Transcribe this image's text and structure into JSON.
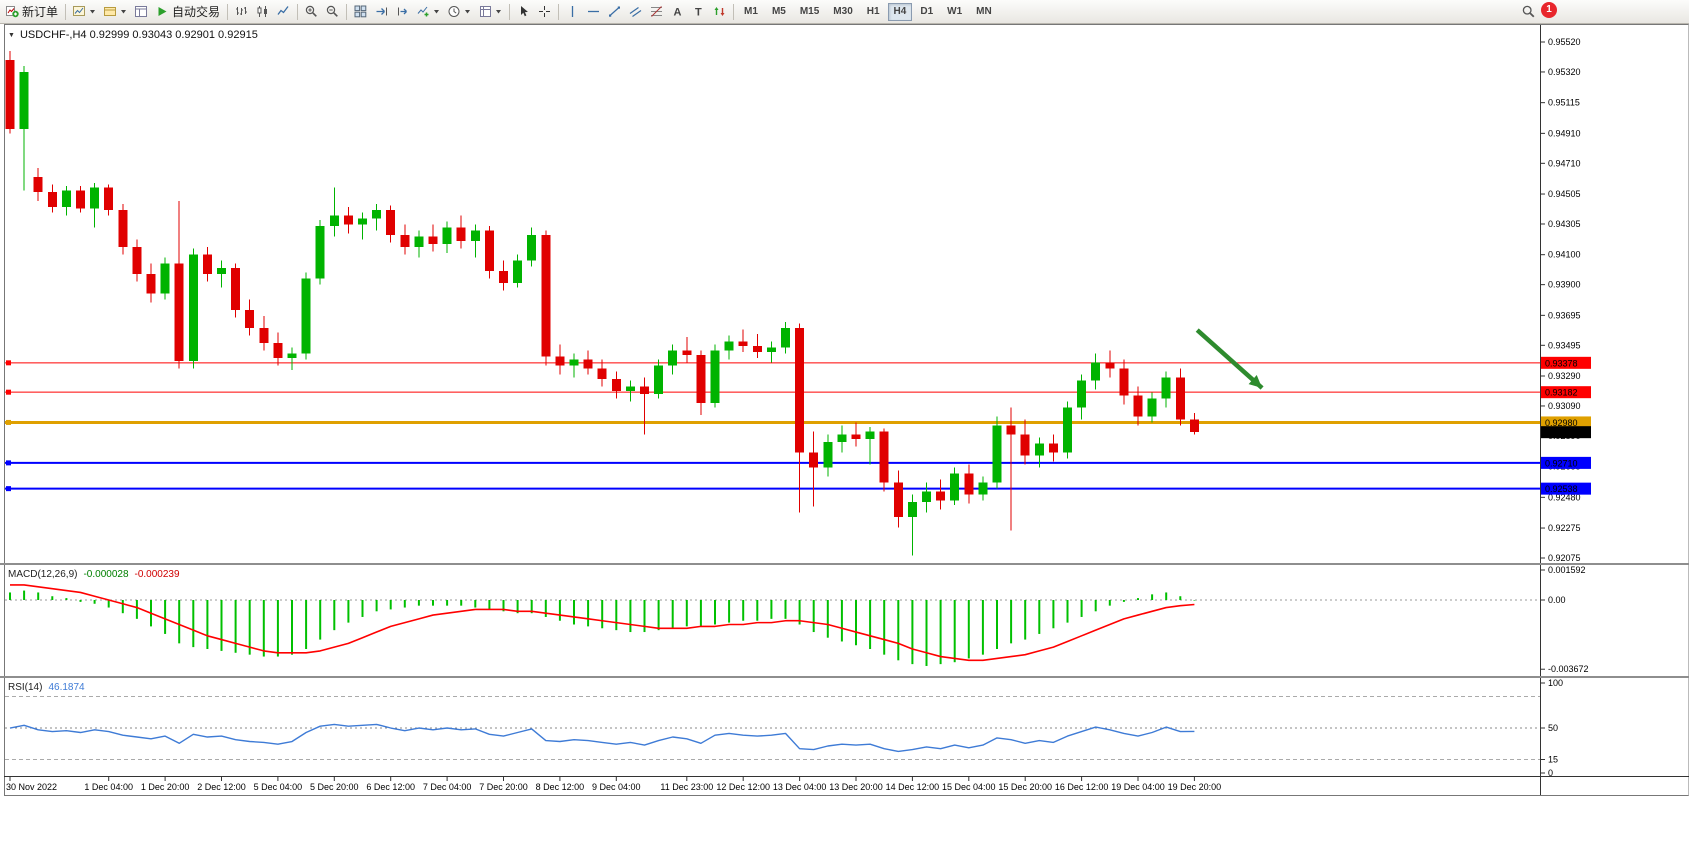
{
  "toolbar": {
    "new_order_label": "新订单",
    "auto_trade_label": "自动交易",
    "timeframes": [
      "M1",
      "M5",
      "M15",
      "M30",
      "H1",
      "H4",
      "D1",
      "W1",
      "MN"
    ],
    "active_timeframe": "H4",
    "notification_badge": "1",
    "items": [
      {
        "type": "button",
        "name": "new-order-button",
        "icon": "new-order",
        "label": "新订单"
      },
      {
        "type": "sep"
      },
      {
        "type": "button",
        "name": "new-chart-button",
        "icon": "new-chart",
        "dropdown": true
      },
      {
        "type": "button",
        "name": "profiles-button",
        "icon": "profiles",
        "dropdown": true
      },
      {
        "type": "button",
        "name": "data-window-button",
        "icon": "data-window"
      },
      {
        "type": "button",
        "name": "auto-trading-button",
        "icon": "play",
        "label": "自动交易"
      },
      {
        "type": "sep"
      },
      {
        "type": "button",
        "name": "bar-chart-type-button",
        "icon": "bars"
      },
      {
        "type": "button",
        "name": "candlestick-chart-type-button",
        "icon": "candles"
      },
      {
        "type": "button",
        "name": "line-chart-type-button",
        "icon": "linechart"
      },
      {
        "type": "sep"
      },
      {
        "type": "button",
        "name": "zoom-in-button",
        "icon": "zoomin"
      },
      {
        "type": "button",
        "name": "zoom-out-button",
        "icon": "zoomout"
      },
      {
        "type": "sep"
      },
      {
        "type": "button",
        "name": "tile-windows-button",
        "icon": "tile"
      },
      {
        "type": "button",
        "name": "auto-scroll-button",
        "icon": "autoscroll"
      },
      {
        "type": "button",
        "name": "chart-shift-button",
        "icon": "chartshift"
      },
      {
        "type": "button",
        "name": "indicators-button",
        "icon": "indicators",
        "dropdown": true
      },
      {
        "type": "button",
        "name": "periods-button",
        "icon": "clock",
        "dropdown": true
      },
      {
        "type": "button",
        "name": "templates-button",
        "icon": "templates",
        "dropdown": true
      },
      {
        "type": "sep"
      },
      {
        "type": "button",
        "name": "cursor-tool-button",
        "icon": "cursor"
      },
      {
        "type": "button",
        "name": "crosshair-tool-button",
        "icon": "crosshair"
      },
      {
        "type": "sep"
      },
      {
        "type": "button",
        "name": "vertical-line-tool-button",
        "icon": "vline"
      },
      {
        "type": "button",
        "name": "horizontal-line-tool-button",
        "icon": "hline"
      },
      {
        "type": "button",
        "name": "trendline-tool-button",
        "icon": "trendline"
      },
      {
        "type": "button",
        "name": "channel-tool-button",
        "icon": "channel"
      },
      {
        "type": "button",
        "name": "fibonacci-tool-button",
        "icon": "fibo"
      },
      {
        "type": "button",
        "name": "text-tool-button",
        "icon": "textA"
      },
      {
        "type": "button",
        "name": "label-tool-button",
        "icon": "labelT"
      },
      {
        "type": "button",
        "name": "arrows-tool-button",
        "icon": "arrows"
      },
      {
        "type": "sep"
      },
      {
        "type": "tf"
      },
      {
        "type": "button",
        "name": "search-button",
        "icon": "magnifier",
        "spacer": true
      }
    ]
  },
  "chart": {
    "symbol_info": "USDCHF-,H4 0.92999 0.93043 0.92901 0.92915",
    "macd_label": "MACD(12,26,9)",
    "macd_value_1": "-0.000028",
    "macd_value_2": "-0.000239",
    "rsi_label": "RSI(14)",
    "rsi_value": "46.1874"
  },
  "chart_data": {
    "type": "candlestick",
    "symbol": "USDCHF-",
    "period": "H4",
    "price_range": [
      0.92075,
      0.9552
    ],
    "price_axis_labels": [
      "0.95520",
      "0.95320",
      "0.95115",
      "0.94910",
      "0.94710",
      "0.94505",
      "0.94305",
      "0.94100",
      "0.93900",
      "0.93695",
      "0.93495",
      "0.93290",
      "0.93090",
      "0.92890",
      "0.92685",
      "0.92480",
      "0.92275",
      "0.92075"
    ],
    "current_price": "0.92915",
    "colors": {
      "bull": "#00B300",
      "bear": "#E00000",
      "background": "#FFFFFF",
      "axis_text": "#000000"
    },
    "hlines": [
      {
        "price": 0.93378,
        "label": "0.93378",
        "color": "#FF0000",
        "width": 1
      },
      {
        "price": 0.93182,
        "label": "0.93182",
        "color": "#FF0000",
        "width": 1
      },
      {
        "price": 0.9298,
        "label": "0.92980",
        "color": "#DFA000",
        "width": 3
      },
      {
        "price": 0.9271,
        "label": "0.92710",
        "color": "#0000FF",
        "width": 2
      },
      {
        "price": 0.92538,
        "label": "0.92538",
        "color": "#0000FF",
        "width": 2
      }
    ],
    "annotation_arrow": {
      "i1": 84.2,
      "p1": 0.93597,
      "i2": 88.8,
      "p2": 0.9321,
      "color": "#2E8B2E"
    },
    "ohlc": [
      [
        0.954,
        0.9546,
        0.9491,
        0.9494
      ],
      [
        0.9494,
        0.9536,
        0.9453,
        0.9532
      ],
      [
        0.9462,
        0.9468,
        0.9446,
        0.9452
      ],
      [
        0.9452,
        0.9457,
        0.9438,
        0.9442
      ],
      [
        0.9442,
        0.9456,
        0.9436,
        0.9453
      ],
      [
        0.9453,
        0.9456,
        0.9438,
        0.9441
      ],
      [
        0.9441,
        0.9458,
        0.9428,
        0.9455
      ],
      [
        0.9455,
        0.9457,
        0.9436,
        0.944
      ],
      [
        0.944,
        0.9444,
        0.941,
        0.9415
      ],
      [
        0.9415,
        0.942,
        0.9392,
        0.9397
      ],
      [
        0.9397,
        0.9404,
        0.9378,
        0.9384
      ],
      [
        0.9384,
        0.9408,
        0.938,
        0.9404
      ],
      [
        0.9404,
        0.9446,
        0.9334,
        0.9339
      ],
      [
        0.9339,
        0.9414,
        0.9334,
        0.941
      ],
      [
        0.941,
        0.9415,
        0.9392,
        0.9397
      ],
      [
        0.9397,
        0.9406,
        0.9388,
        0.9401
      ],
      [
        0.9401,
        0.9404,
        0.9368,
        0.9373
      ],
      [
        0.9373,
        0.938,
        0.9356,
        0.9361
      ],
      [
        0.9361,
        0.9369,
        0.9346,
        0.9351
      ],
      [
        0.9351,
        0.9358,
        0.9336,
        0.9341
      ],
      [
        0.9341,
        0.9348,
        0.9333,
        0.9344
      ],
      [
        0.9344,
        0.9398,
        0.934,
        0.9394
      ],
      [
        0.9394,
        0.9433,
        0.939,
        0.9429
      ],
      [
        0.9429,
        0.9455,
        0.9422,
        0.9436
      ],
      [
        0.9436,
        0.9442,
        0.9424,
        0.943
      ],
      [
        0.943,
        0.9438,
        0.942,
        0.9434
      ],
      [
        0.9434,
        0.9444,
        0.9426,
        0.944
      ],
      [
        0.944,
        0.9443,
        0.9418,
        0.9423
      ],
      [
        0.9423,
        0.943,
        0.941,
        0.9415
      ],
      [
        0.9415,
        0.9426,
        0.9408,
        0.9422
      ],
      [
        0.9422,
        0.943,
        0.9412,
        0.9417
      ],
      [
        0.9417,
        0.9432,
        0.9411,
        0.9428
      ],
      [
        0.9428,
        0.9436,
        0.9414,
        0.9419
      ],
      [
        0.9419,
        0.943,
        0.9408,
        0.9426
      ],
      [
        0.9426,
        0.9429,
        0.9394,
        0.9399
      ],
      [
        0.9399,
        0.9406,
        0.9386,
        0.9391
      ],
      [
        0.9391,
        0.941,
        0.9388,
        0.9406
      ],
      [
        0.9406,
        0.9428,
        0.9402,
        0.9423
      ],
      [
        0.9423,
        0.9426,
        0.9336,
        0.9342
      ],
      [
        0.9342,
        0.935,
        0.933,
        0.9336
      ],
      [
        0.9336,
        0.9344,
        0.9328,
        0.934
      ],
      [
        0.934,
        0.9346,
        0.933,
        0.9334
      ],
      [
        0.9334,
        0.934,
        0.9322,
        0.9327
      ],
      [
        0.9327,
        0.9332,
        0.9314,
        0.9319
      ],
      [
        0.9319,
        0.9326,
        0.9312,
        0.9322
      ],
      [
        0.9322,
        0.9328,
        0.929,
        0.9317
      ],
      [
        0.9317,
        0.934,
        0.9314,
        0.9336
      ],
      [
        0.9336,
        0.935,
        0.933,
        0.9346
      ],
      [
        0.9346,
        0.9355,
        0.9338,
        0.9343
      ],
      [
        0.9343,
        0.9346,
        0.9303,
        0.9311
      ],
      [
        0.9311,
        0.935,
        0.9308,
        0.9346
      ],
      [
        0.9346,
        0.9356,
        0.934,
        0.9352
      ],
      [
        0.9352,
        0.936,
        0.9345,
        0.9349
      ],
      [
        0.9349,
        0.9357,
        0.9341,
        0.9345
      ],
      [
        0.9345,
        0.9352,
        0.9338,
        0.9348
      ],
      [
        0.9348,
        0.9365,
        0.9344,
        0.9361
      ],
      [
        0.9361,
        0.9364,
        0.9238,
        0.9278
      ],
      [
        0.9278,
        0.9292,
        0.9242,
        0.9268
      ],
      [
        0.9268,
        0.929,
        0.9262,
        0.9285
      ],
      [
        0.9285,
        0.9296,
        0.9278,
        0.929
      ],
      [
        0.929,
        0.9298,
        0.9282,
        0.9287
      ],
      [
        0.9287,
        0.9295,
        0.927,
        0.9292
      ],
      [
        0.9292,
        0.9294,
        0.9252,
        0.9258
      ],
      [
        0.9258,
        0.9266,
        0.9228,
        0.9235
      ],
      [
        0.9235,
        0.925,
        0.9209,
        0.9245
      ],
      [
        0.9245,
        0.9258,
        0.9238,
        0.9252
      ],
      [
        0.9252,
        0.926,
        0.924,
        0.9246
      ],
      [
        0.9246,
        0.9268,
        0.9243,
        0.9264
      ],
      [
        0.9264,
        0.927,
        0.9244,
        0.925
      ],
      [
        0.925,
        0.9262,
        0.9246,
        0.9258
      ],
      [
        0.9258,
        0.9302,
        0.9254,
        0.9296
      ],
      [
        0.9296,
        0.9308,
        0.9226,
        0.929
      ],
      [
        0.929,
        0.93,
        0.927,
        0.9276
      ],
      [
        0.9276,
        0.9288,
        0.9268,
        0.9284
      ],
      [
        0.9284,
        0.929,
        0.9272,
        0.9278
      ],
      [
        0.9278,
        0.9312,
        0.9274,
        0.9308
      ],
      [
        0.9308,
        0.933,
        0.93,
        0.9326
      ],
      [
        0.9326,
        0.9344,
        0.932,
        0.9338
      ],
      [
        0.9338,
        0.9346,
        0.9328,
        0.9334
      ],
      [
        0.9334,
        0.934,
        0.931,
        0.9316
      ],
      [
        0.9316,
        0.9322,
        0.9296,
        0.9302
      ],
      [
        0.9302,
        0.9318,
        0.9298,
        0.9314
      ],
      [
        0.9314,
        0.9332,
        0.9308,
        0.9328
      ],
      [
        0.9328,
        0.9334,
        0.9296,
        0.93
      ],
      [
        0.92999,
        0.93043,
        0.92901,
        0.92915
      ]
    ],
    "time_labels": [
      {
        "i": 0,
        "label": "30 Nov 2022"
      },
      {
        "i": 7,
        "label": "1 Dec 04:00"
      },
      {
        "i": 11,
        "label": "1 Dec 20:00"
      },
      {
        "i": 15,
        "label": "2 Dec 12:00"
      },
      {
        "i": 19,
        "label": "5 Dec 04:00"
      },
      {
        "i": 23,
        "label": "5 Dec 20:00"
      },
      {
        "i": 27,
        "label": "6 Dec 12:00"
      },
      {
        "i": 31,
        "label": "7 Dec 04:00"
      },
      {
        "i": 35,
        "label": "7 Dec 20:00"
      },
      {
        "i": 39,
        "label": "8 Dec 12:00"
      },
      {
        "i": 43,
        "label": "9 Dec 04:00"
      },
      {
        "i": 48,
        "label": "11 Dec 23:00"
      },
      {
        "i": 52,
        "label": "12 Dec 12:00"
      },
      {
        "i": 56,
        "label": "13 Dec 04:00"
      },
      {
        "i": 60,
        "label": "13 Dec 20:00"
      },
      {
        "i": 64,
        "label": "14 Dec 12:00"
      },
      {
        "i": 68,
        "label": "15 Dec 04:00"
      },
      {
        "i": 72,
        "label": "15 Dec 20:00"
      },
      {
        "i": 76,
        "label": "16 Dec 12:00"
      },
      {
        "i": 80,
        "label": "19 Dec 04:00"
      },
      {
        "i": 84,
        "label": "19 Dec 20:00"
      }
    ],
    "macd": {
      "axis_labels": [
        "0.001592",
        "0.00",
        "-0.003672"
      ],
      "hist_color": "#00C000",
      "signal_color": "#FF0000",
      "histogram": [
        0.0004,
        0.0005,
        0.0004,
        0.0002,
        0.0001,
        -0.0001,
        -0.0002,
        -0.0004,
        -0.0007,
        -0.001,
        -0.0014,
        -0.0018,
        -0.0023,
        -0.0025,
        -0.0026,
        -0.0027,
        -0.0028,
        -0.0029,
        -0.003,
        -0.003,
        -0.0029,
        -0.0026,
        -0.0021,
        -0.0016,
        -0.0012,
        -0.0009,
        -0.0006,
        -0.0005,
        -0.0004,
        -0.0003,
        -0.0003,
        -0.0003,
        -0.0003,
        -0.0004,
        -0.0005,
        -0.0006,
        -0.0007,
        -0.0007,
        -0.0009,
        -0.0011,
        -0.0013,
        -0.0014,
        -0.0015,
        -0.0016,
        -0.0017,
        -0.0017,
        -0.0016,
        -0.0015,
        -0.0014,
        -0.0014,
        -0.0013,
        -0.0012,
        -0.0011,
        -0.0011,
        -0.001,
        -0.001,
        -0.0013,
        -0.0017,
        -0.002,
        -0.0022,
        -0.0024,
        -0.0026,
        -0.0029,
        -0.0032,
        -0.0034,
        -0.0035,
        -0.0034,
        -0.0033,
        -0.0031,
        -0.0029,
        -0.0026,
        -0.0023,
        -0.0021,
        -0.0018,
        -0.0015,
        -0.0012,
        -0.0009,
        -0.0006,
        -0.0003,
        -0.0001,
        0.0001,
        0.0003,
        0.0004,
        0.0002,
        -2.8e-05
      ],
      "signal": [
        0.0008,
        0.0008,
        0.0007,
        0.0006,
        0.0005,
        0.0004,
        0.0002,
        0.0,
        -0.0002,
        -0.0004,
        -0.0007,
        -0.001,
        -0.0013,
        -0.0016,
        -0.0019,
        -0.0021,
        -0.0023,
        -0.0025,
        -0.0027,
        -0.0028,
        -0.0028,
        -0.0028,
        -0.0027,
        -0.0025,
        -0.0023,
        -0.002,
        -0.0017,
        -0.0014,
        -0.0012,
        -0.001,
        -0.0008,
        -0.0007,
        -0.0006,
        -0.0005,
        -0.0005,
        -0.0005,
        -0.0006,
        -0.0006,
        -0.0007,
        -0.0008,
        -0.0009,
        -0.001,
        -0.0011,
        -0.0012,
        -0.0013,
        -0.0014,
        -0.0015,
        -0.0015,
        -0.0015,
        -0.0014,
        -0.0014,
        -0.0013,
        -0.0013,
        -0.0012,
        -0.0012,
        -0.0011,
        -0.0011,
        -0.0012,
        -0.0013,
        -0.0015,
        -0.0017,
        -0.0019,
        -0.0021,
        -0.0023,
        -0.0026,
        -0.0028,
        -0.003,
        -0.0031,
        -0.0032,
        -0.0032,
        -0.0031,
        -0.003,
        -0.0029,
        -0.0027,
        -0.0025,
        -0.0022,
        -0.0019,
        -0.0016,
        -0.0013,
        -0.001,
        -0.0008,
        -0.0006,
        -0.0004,
        -0.0003,
        -0.000239
      ]
    },
    "rsi": {
      "axis_labels": [
        "100",
        "50",
        "15",
        "0"
      ],
      "color": "#3E7BD6",
      "levels": [
        85,
        50,
        15
      ],
      "values": [
        50,
        53,
        48,
        46,
        47,
        45,
        48,
        46,
        42,
        40,
        38,
        41,
        33,
        43,
        40,
        41,
        37,
        35,
        34,
        32,
        35,
        45,
        52,
        54,
        52,
        53,
        54,
        50,
        47,
        50,
        48,
        50,
        48,
        49,
        43,
        41,
        45,
        49,
        36,
        35,
        37,
        36,
        34,
        32,
        34,
        31,
        36,
        40,
        38,
        33,
        42,
        44,
        42,
        41,
        42,
        44,
        27,
        26,
        30,
        32,
        31,
        32,
        27,
        24,
        26,
        29,
        27,
        31,
        28,
        31,
        39,
        37,
        33,
        36,
        34,
        41,
        46,
        51,
        48,
        44,
        41,
        45,
        51,
        46,
        46.19
      ]
    }
  }
}
